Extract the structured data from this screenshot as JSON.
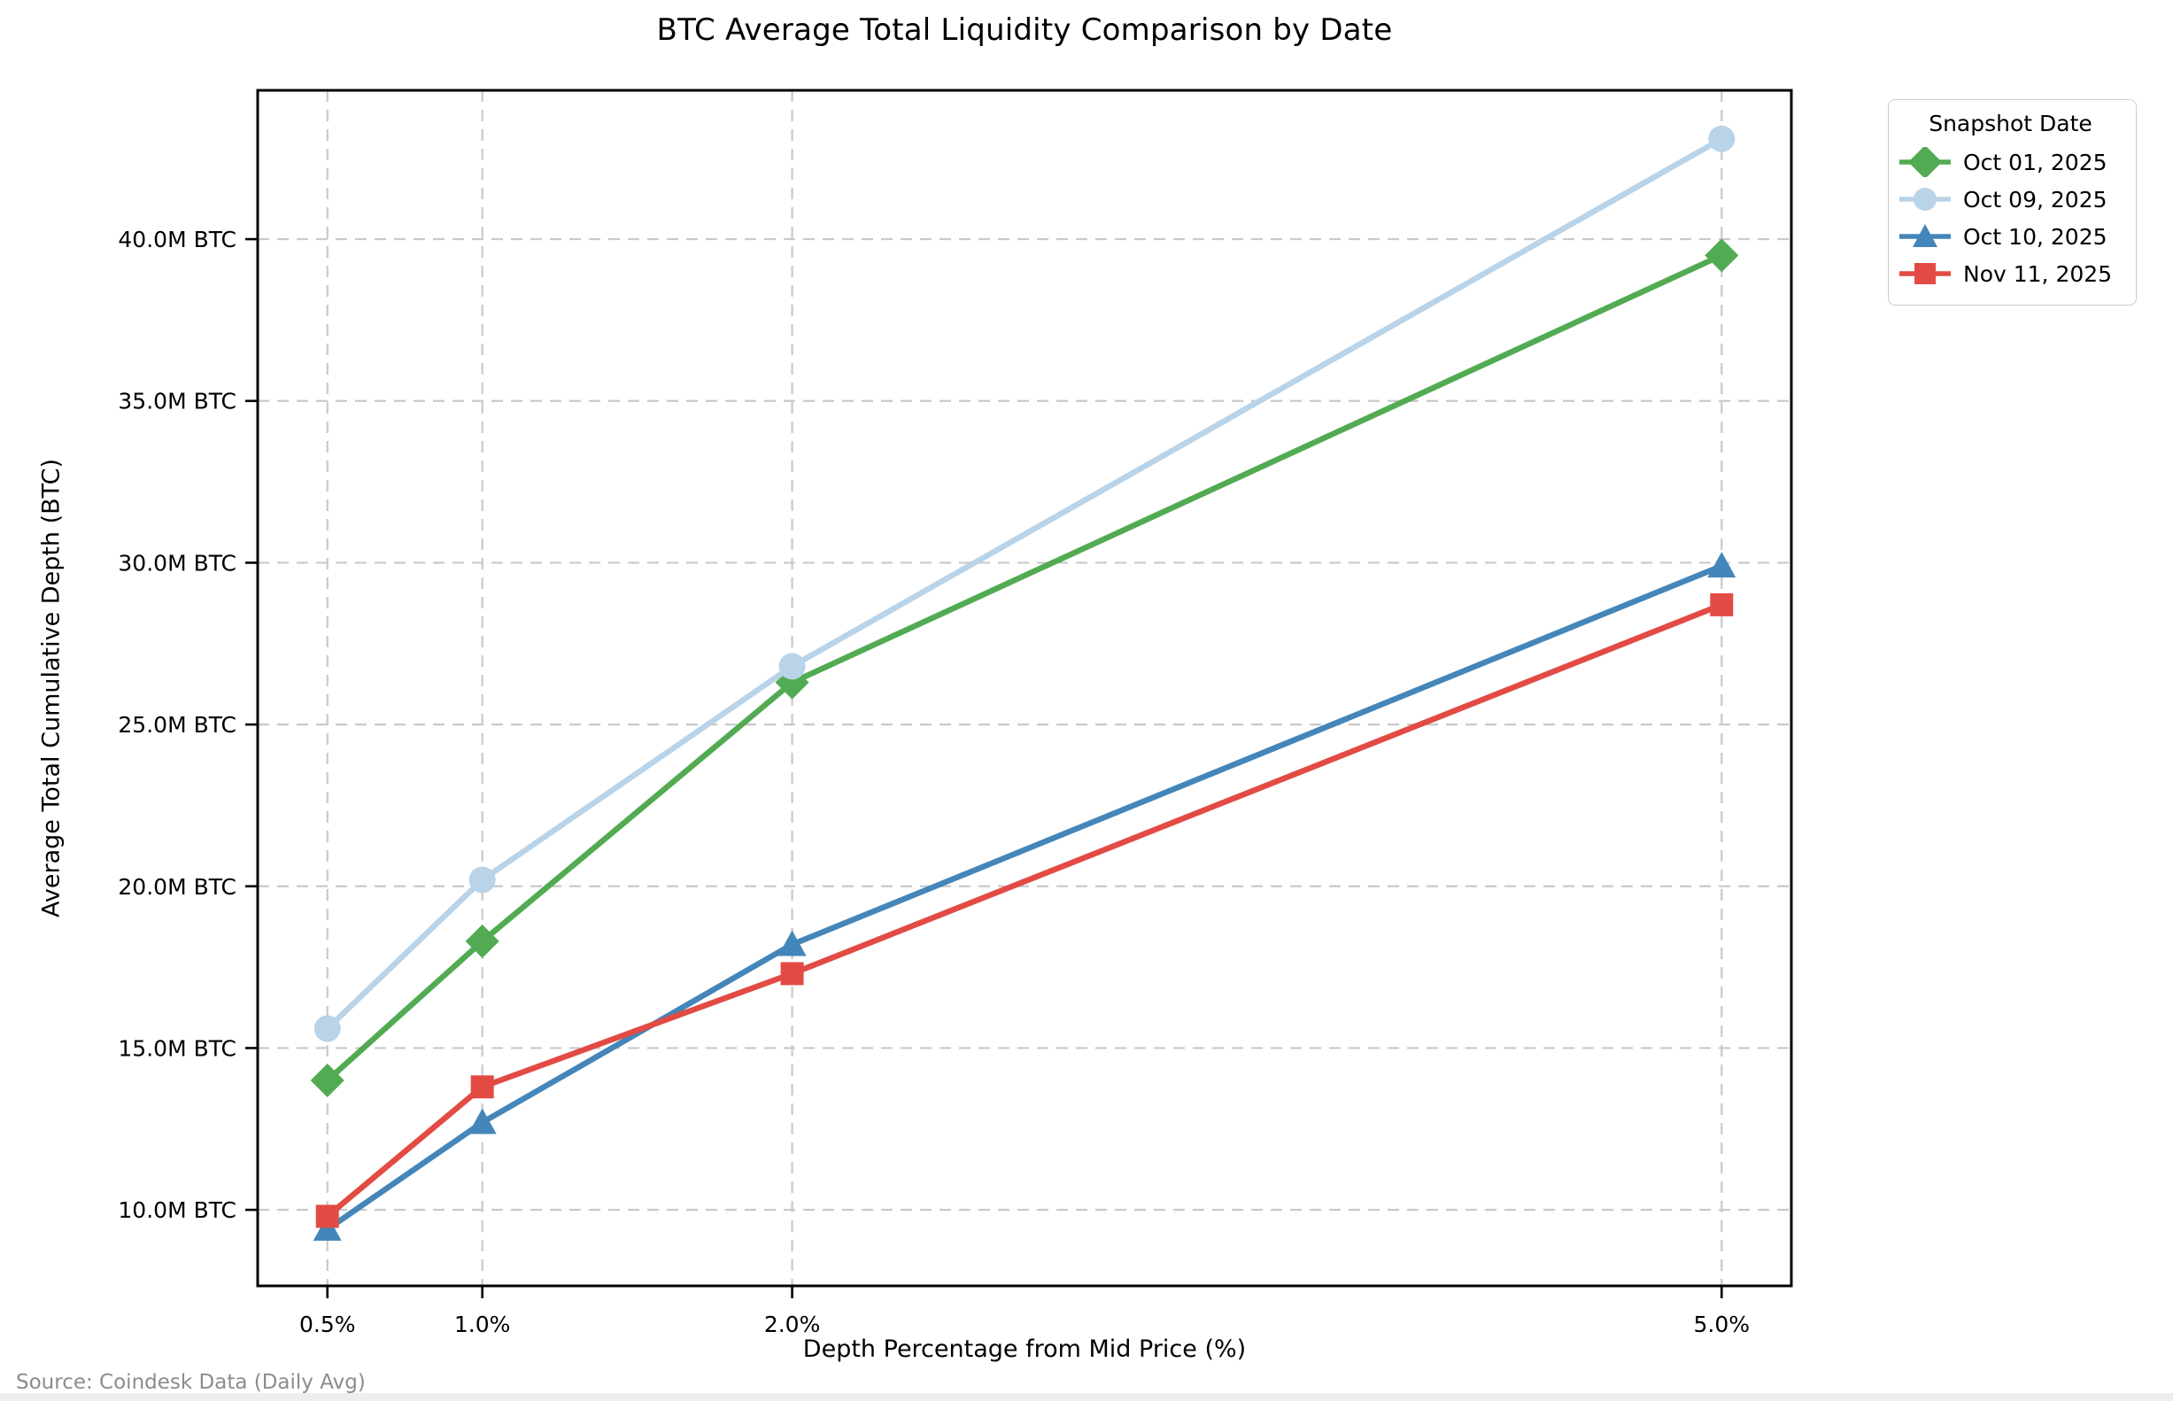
{
  "chart_data": {
    "type": "line",
    "title": "BTC Average Total Liquidity Comparison by Date",
    "xlabel": "Depth Percentage from Mid Price (%)",
    "ylabel": "Average Total Cumulative Depth (BTC)",
    "source_note": "Source: Coindesk Data (Daily Avg)",
    "legend_title": "Snapshot Date",
    "legend_position": "outside-top-right",
    "grid": true,
    "grid_style": "dashed",
    "grid_color": "#c9c9c9",
    "x_unit": "percent depth from mid price",
    "y_unit": "million BTC",
    "x": [
      0.5,
      1.0,
      2.0,
      5.0
    ],
    "xlim": [
      0.275,
      5.225
    ],
    "ylim": [
      7.65,
      44.6
    ],
    "xticks": [
      {
        "value": 0.5,
        "label": "0.5%"
      },
      {
        "value": 1.0,
        "label": "1.0%"
      },
      {
        "value": 2.0,
        "label": "2.0%"
      },
      {
        "value": 5.0,
        "label": "5.0%"
      }
    ],
    "yticks": [
      {
        "value": 10,
        "label": "10.0M BTC"
      },
      {
        "value": 15,
        "label": "15.0M BTC"
      },
      {
        "value": 20,
        "label": "20.0M BTC"
      },
      {
        "value": 25,
        "label": "25.0M BTC"
      },
      {
        "value": 30,
        "label": "30.0M BTC"
      },
      {
        "value": 35,
        "label": "35.0M BTC"
      },
      {
        "value": 40,
        "label": "40.0M BTC"
      }
    ],
    "series": [
      {
        "name": "Oct 01, 2025",
        "color": "#52AB52",
        "marker": "diamond",
        "values": [
          14.0,
          18.3,
          26.3,
          39.5
        ]
      },
      {
        "name": "Oct 09, 2025",
        "color": "#B9D3E8",
        "marker": "circle",
        "values": [
          15.6,
          20.2,
          26.8,
          43.1
        ]
      },
      {
        "name": "Oct 10, 2025",
        "color": "#4486B9",
        "marker": "triangle",
        "values": [
          9.4,
          12.7,
          18.2,
          29.9
        ]
      },
      {
        "name": "Nov 11, 2025",
        "color": "#E24B44",
        "marker": "square",
        "values": [
          9.8,
          13.8,
          17.3,
          28.7
        ]
      }
    ]
  }
}
